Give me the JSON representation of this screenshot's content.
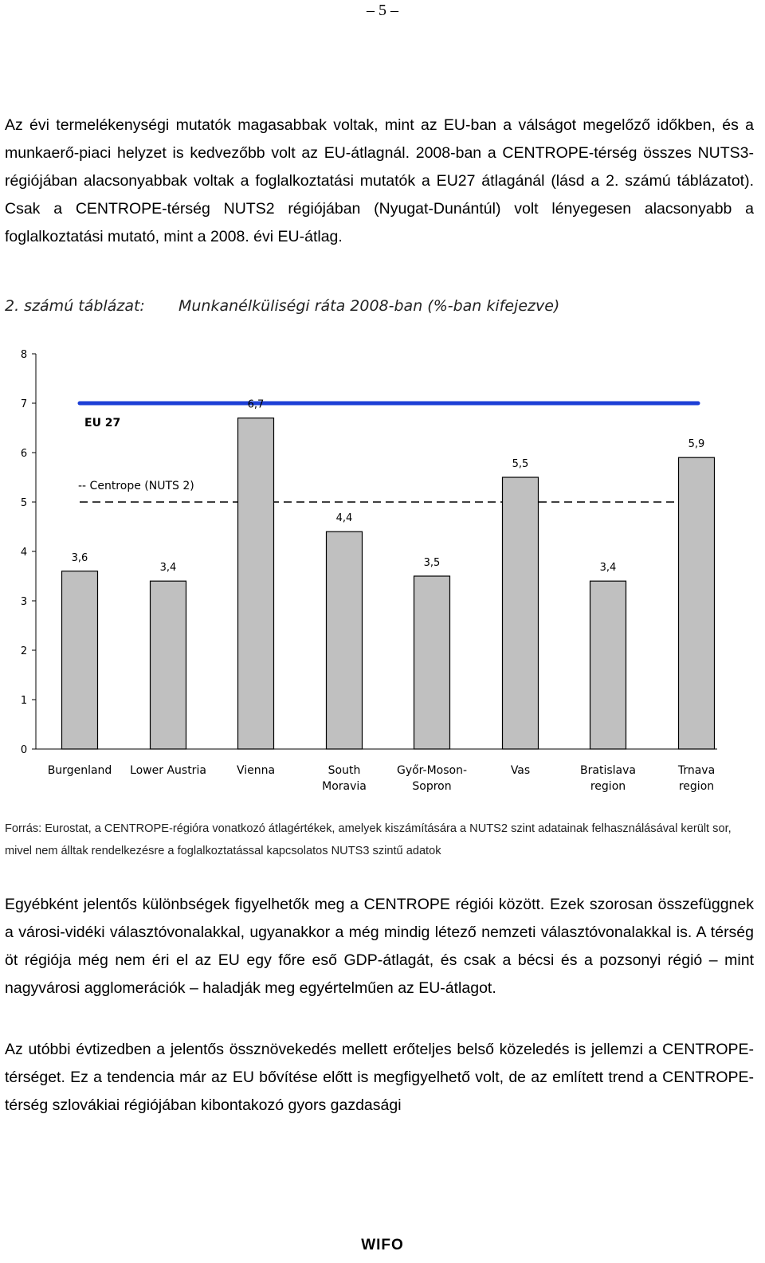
{
  "page_number": "– 5 –",
  "paragraph_1": "Az évi termelékenységi mutatók magasabbak voltak, mint az EU-ban a válságot megelőző időkben, és a munkaerő-piaci helyzet is kedvezőbb volt az EU-átlagnál. 2008-ban a CENTROPE-térség összes NUTS3-régiójában alacsonyabbak voltak a foglalkoztatási mutatók a EU27 átlagánál (lásd a 2. számú táblázatot). Csak a CENTROPE-térség NUTS2 régiójában (Nyugat-Dunántúl) volt lényegesen alacsonyabb a foglalkoztatási mutató, mint a 2008. évi EU-átlag.",
  "caption": {
    "label": "2. számú táblázat:",
    "title": "Munkanélküliségi ráta 2008-ban (%-ban kifejezve)"
  },
  "chart_data": {
    "type": "bar",
    "ylim": [
      0,
      8
    ],
    "y_ticks": [
      "0",
      "1",
      "2",
      "3",
      "4",
      "5",
      "6",
      "7",
      "8"
    ],
    "categories": [
      [
        "Burgenland"
      ],
      [
        "Lower Austria"
      ],
      [
        "Vienna"
      ],
      [
        "South",
        "Moravia"
      ],
      [
        "Győr-Moson-",
        "Sopron"
      ],
      [
        "Vas"
      ],
      [
        "Bratislava",
        "region"
      ],
      [
        "Trnava",
        "region"
      ]
    ],
    "values": [
      3.6,
      3.4,
      6.7,
      4.4,
      3.5,
      5.5,
      3.4,
      5.9
    ],
    "value_labels": [
      "3,6",
      "3,4",
      "6,7",
      "4,4",
      "3,5",
      "5,5",
      "3,4",
      "5,9"
    ],
    "reference_lines": [
      {
        "label": "EU 27",
        "value": 7.0,
        "style": "solid",
        "color": "#1d3fd6"
      },
      {
        "label": "-- Centrope (NUTS 2)",
        "value": 5.0,
        "style": "dashed",
        "color": "#000000"
      }
    ],
    "bar_color": "#c0c0c0",
    "grid": false
  },
  "source_note": "Forrás: Eurostat, a CENTROPE-régióra vonatkozó átlagértékek, amelyek kiszámítására a NUTS2 szint adatainak felhasználásával került sor, mivel nem álltak rendelkezésre a foglalkoztatással kapcsolatos NUTS3 szintű adatok",
  "paragraph_2": "Egyébként jelentős különbségek figyelhetők meg a CENTROPE régiói között. Ezek szorosan összefüggnek a városi-vidéki választóvonalakkal, ugyanakkor a még mindig létező nemzeti választóvonalakkal is. A térség öt régiója még nem éri el az EU egy főre eső GDP-átlagát, és csak a bécsi és a pozsonyi régió – mint nagyvárosi agglomerációk – haladják meg egyértelműen az EU-átlagot.",
  "paragraph_3": "Az utóbbi évtizedben a jelentős össznövekedés mellett erőteljes belső közeledés is jellemzi a CENTROPE-térséget. Ez a tendencia már az EU bővítése előtt is megfigyelhető volt, de az említett trend a CENTROPE-térség szlovákiai régiójában kibontakozó gyors gazdasági",
  "footer_logo": "WIFO"
}
